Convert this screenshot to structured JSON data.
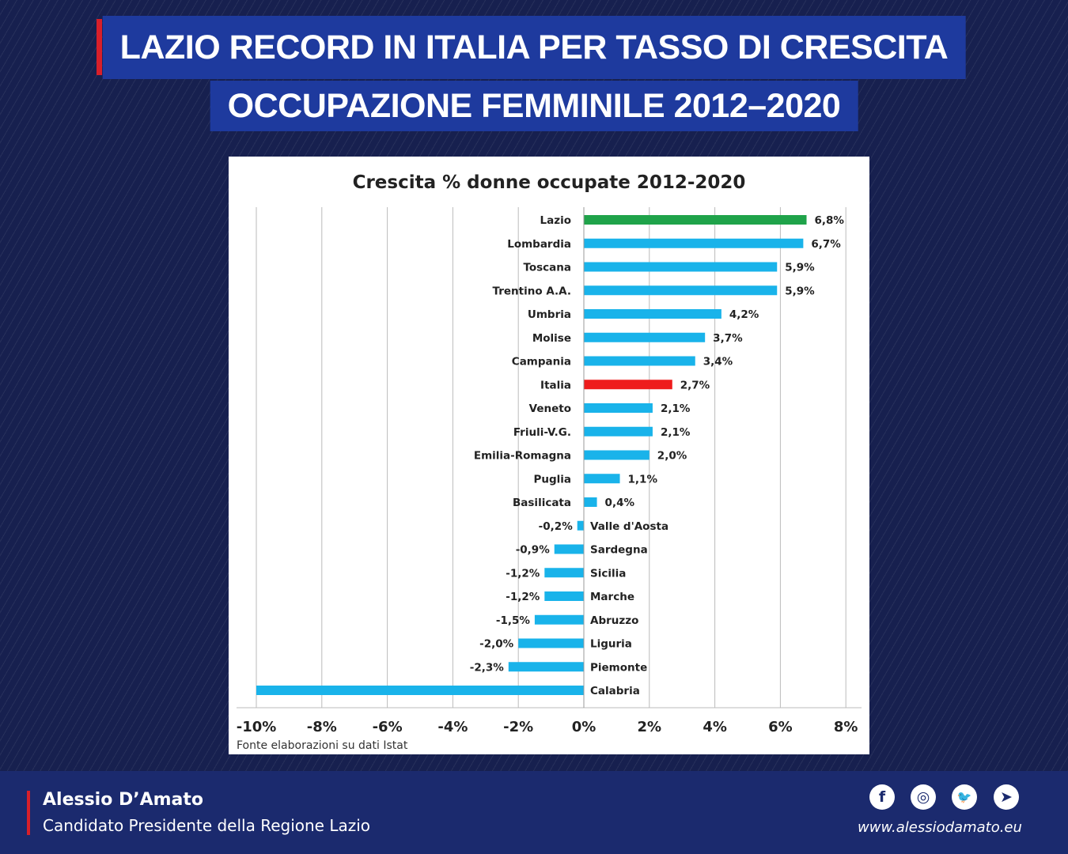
{
  "header": {
    "line1": "LAZIO RECORD IN ITALIA PER TASSO DI CRESCITA",
    "line2": "OCCUPAZIONE FEMMINILE 2012–2020"
  },
  "chart_data": {
    "type": "bar",
    "orientation": "horizontal",
    "title": "Crescita % donne occupate 2012-2020",
    "source": "Fonte elaborazioni su dati Istat",
    "categories": [
      "Lazio",
      "Lombardia",
      "Toscana",
      "Trentino A.A.",
      "Umbria",
      "Molise",
      "Campania",
      "Italia",
      "Veneto",
      "Friuli-V.G.",
      "Emilia-Romagna",
      "Puglia",
      "Basilicata",
      "Valle d'Aosta",
      "Sardegna",
      "Sicilia",
      "Marche",
      "Abruzzo",
      "Liguria",
      "Piemonte",
      "Calabria"
    ],
    "values": [
      6.8,
      6.7,
      5.9,
      5.9,
      4.2,
      3.7,
      3.4,
      2.7,
      2.1,
      2.1,
      2.0,
      1.1,
      0.4,
      -0.2,
      -0.9,
      -1.2,
      -1.2,
      -1.5,
      -2.0,
      -2.3,
      -10.0
    ],
    "labels": [
      "6,8%",
      "6,7%",
      "5,9%",
      "5,9%",
      "4,2%",
      "3,7%",
      "3,4%",
      "2,7%",
      "2,1%",
      "2,1%",
      "2,0%",
      "1,1%",
      "0,4%",
      "-0,2%",
      "-0,9%",
      "-1,2%",
      "-1,2%",
      "-1,5%",
      "-2,0%",
      "-2,3%",
      ""
    ],
    "colors": {
      "default": "#19b3ea",
      "Lazio": "#1fa34a",
      "Italia": "#ee1c1c"
    },
    "xlim": [
      -10,
      8
    ],
    "xticks": [
      "-10%",
      "-8%",
      "-6%",
      "-4%",
      "-2%",
      "0%",
      "2%",
      "4%",
      "6%",
      "8%"
    ],
    "xtick_values": [
      -10,
      -8,
      -6,
      -4,
      -2,
      0,
      2,
      4,
      6,
      8
    ],
    "grid": true
  },
  "footer": {
    "name": "Alessio D’Amato",
    "role": "Candidato Presidente della Regione Lazio",
    "url": "www.alessiodamato.eu",
    "social": [
      {
        "icon": "facebook-icon",
        "glyph": "f"
      },
      {
        "icon": "instagram-icon",
        "glyph": "◎"
      },
      {
        "icon": "twitter-icon",
        "glyph": "🐦"
      },
      {
        "icon": "telegram-icon",
        "glyph": "➤"
      }
    ]
  }
}
